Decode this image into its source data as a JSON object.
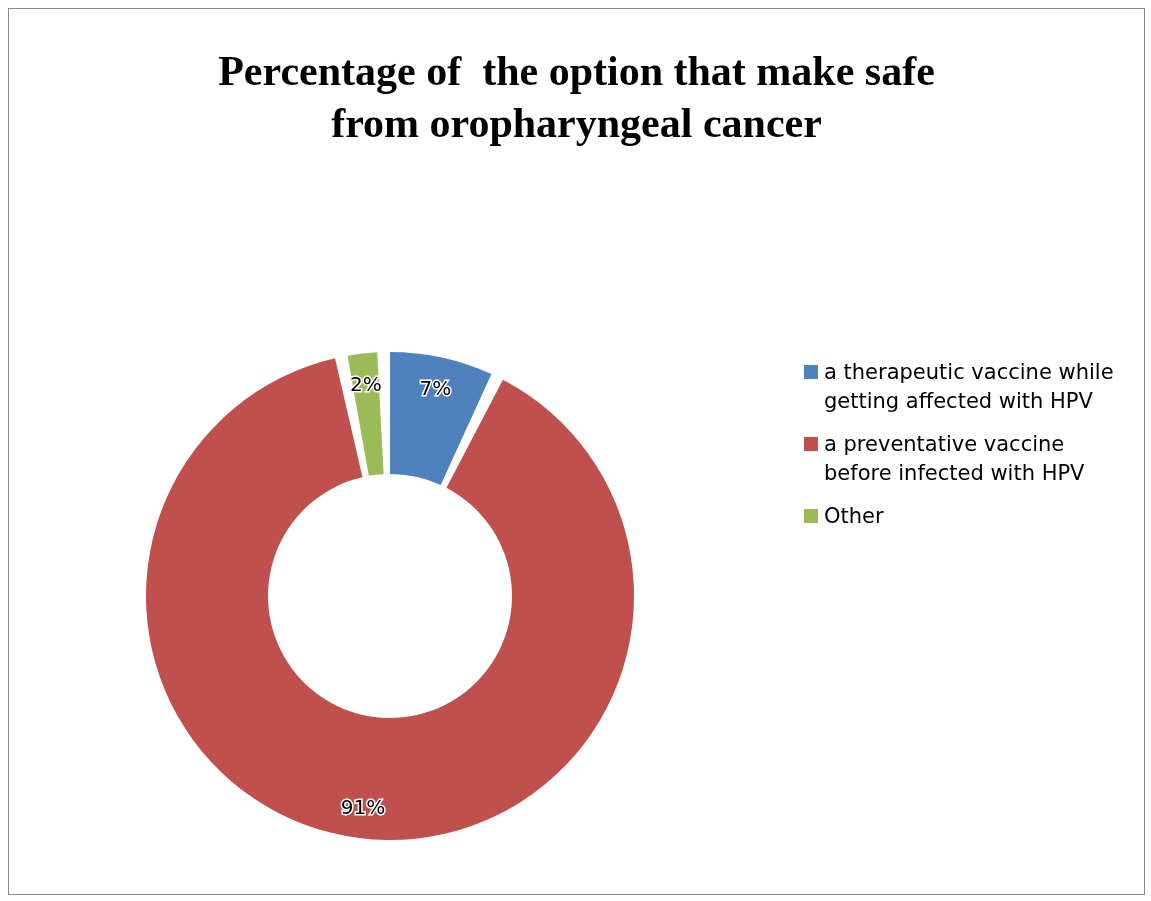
{
  "chart_data": {
    "type": "donut",
    "title": "Percentage of  the option that make safe from oropharyngeal cancer",
    "categories": [
      "a therapeutic vaccine while getting affected with HPV",
      "a preventative vaccine before infected with HPV",
      "Other"
    ],
    "values": [
      7,
      91,
      2
    ],
    "colors": [
      "#4f81bd",
      "#c0504d",
      "#9bbb59"
    ],
    "value_labels": [
      "7%",
      "91%",
      "2%"
    ],
    "legend": "right"
  }
}
